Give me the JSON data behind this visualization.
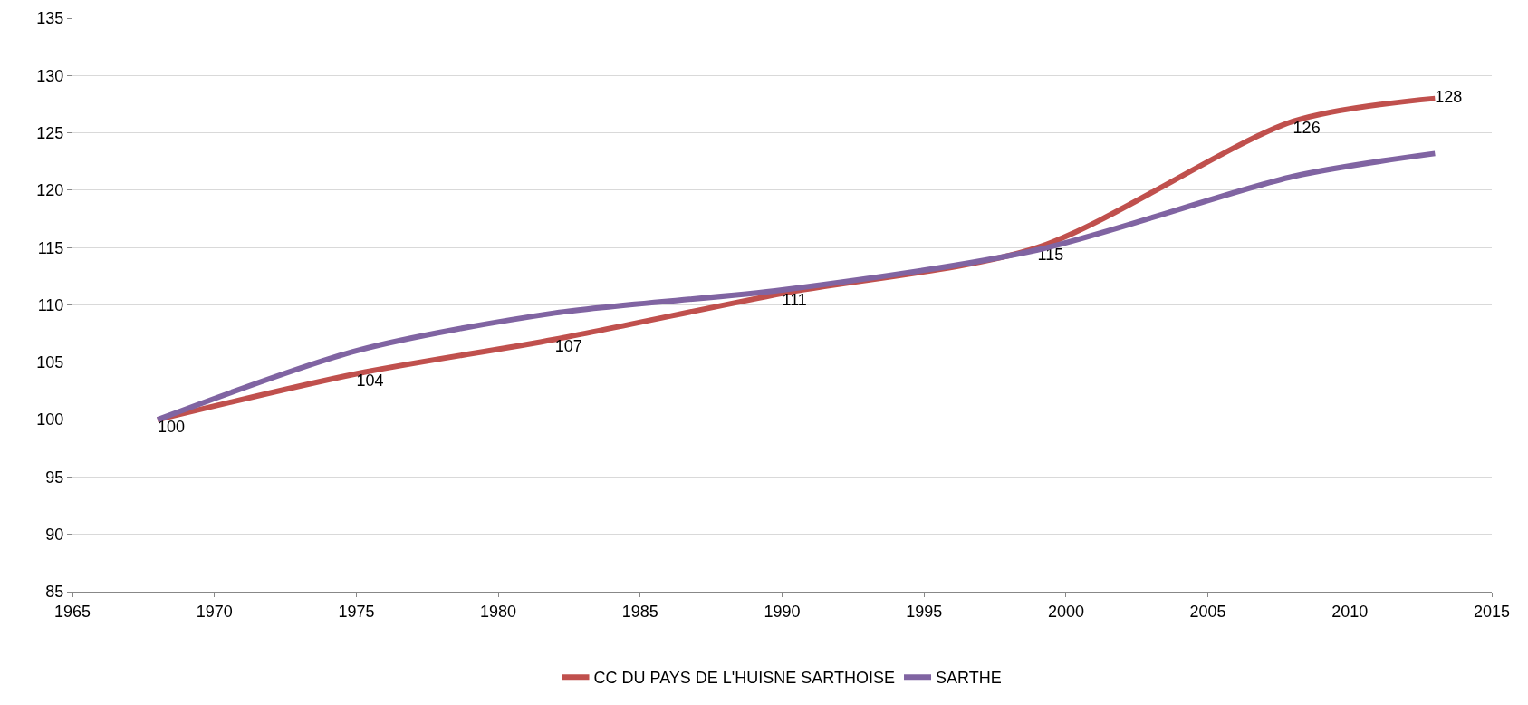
{
  "chart_data": {
    "type": "line",
    "x": [
      1968,
      1975,
      1982,
      1990,
      1999,
      2008,
      2013
    ],
    "series": [
      {
        "name": "CC DU PAYS DE L'HUISNE SARTHOISE",
        "color": "#c0504d",
        "values": [
          100,
          104,
          107,
          111,
          115,
          126,
          128
        ],
        "value_labels": [
          "100",
          "104",
          "107",
          "111",
          "115",
          "126",
          "128"
        ]
      },
      {
        "name": "SARTHE",
        "color": "#8064a2",
        "values": [
          100,
          106,
          109.3,
          111.3,
          114.8,
          121.2,
          123.2
        ]
      }
    ],
    "xlim": [
      1965,
      2015
    ],
    "xticks": [
      1965,
      1970,
      1975,
      1980,
      1985,
      1990,
      1995,
      2000,
      2005,
      2010,
      2015
    ],
    "ylim": [
      85,
      135
    ],
    "yticks": [
      85,
      90,
      95,
      100,
      105,
      110,
      115,
      120,
      125,
      130,
      135
    ],
    "grid": "y",
    "legend": "bottom",
    "marker": "none",
    "line_style": "solid"
  }
}
